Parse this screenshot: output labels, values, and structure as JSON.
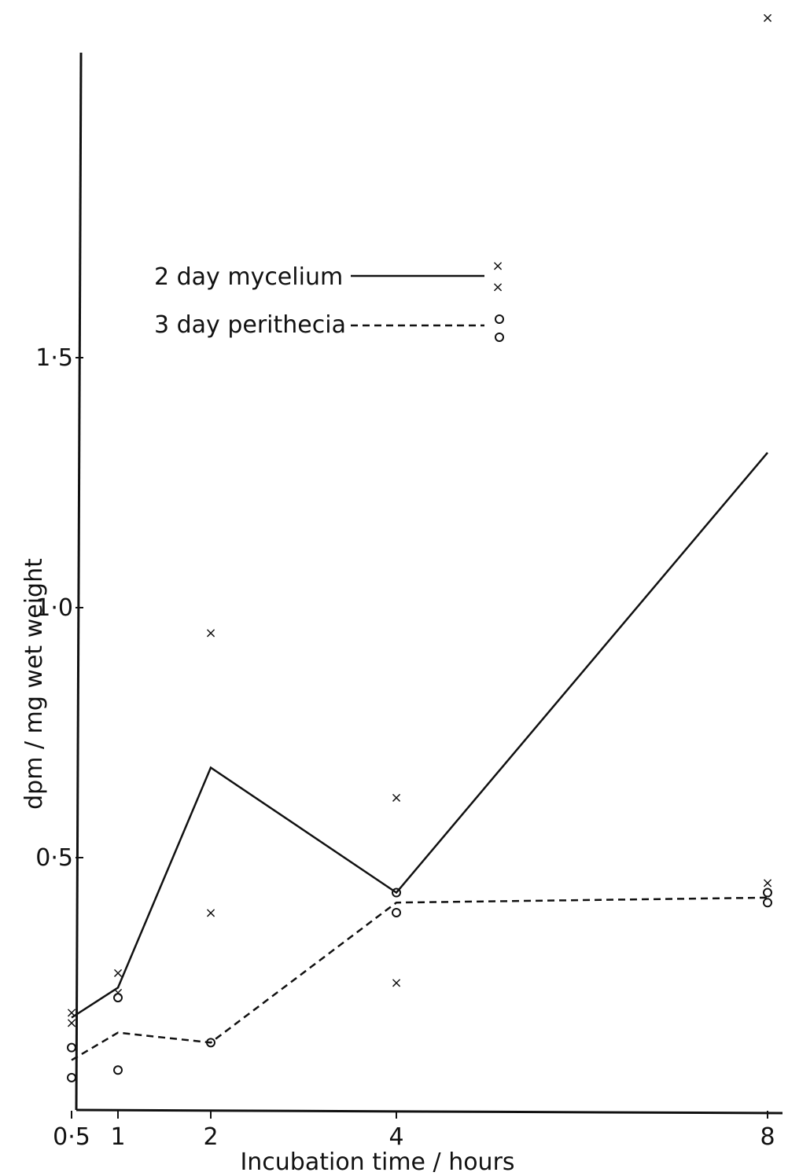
{
  "chart_data": {
    "type": "line",
    "xlabel": "Incubation time / hours",
    "ylabel": "dpm / mg wet weight",
    "x_ticks": [
      {
        "value": 0.5,
        "label": "0·5"
      },
      {
        "value": 1,
        "label": "1"
      },
      {
        "value": 2,
        "label": "2"
      },
      {
        "value": 4,
        "label": "4"
      },
      {
        "value": 8,
        "label": "8"
      }
    ],
    "y_ticks": [
      {
        "value": 0.5,
        "label": "0·5"
      },
      {
        "value": 1.0,
        "label": "1·0"
      },
      {
        "value": 1.5,
        "label": "1·5"
      }
    ],
    "xlim": [
      0,
      8.2
    ],
    "ylim": [
      0,
      2.1
    ],
    "grid": false,
    "legend_position": "top-center",
    "series": [
      {
        "name": "2 day mycelium",
        "line_style": "solid",
        "marker": "x",
        "mean": {
          "x": [
            0.5,
            1,
            2,
            4,
            8
          ],
          "y": [
            0.18,
            0.24,
            0.68,
            0.43,
            1.31
          ]
        },
        "points": {
          "x": [
            0.5,
            0.5,
            1,
            1,
            2,
            2,
            4,
            4,
            8,
            8
          ],
          "y": [
            0.19,
            0.17,
            0.27,
            0.23,
            0.95,
            0.39,
            0.62,
            0.25,
            2.18,
            0.45
          ]
        }
      },
      {
        "name": "3 day perithecia",
        "line_style": "dashed",
        "marker": "o",
        "mean": {
          "x": [
            0.5,
            1,
            2,
            4,
            8
          ],
          "y": [
            0.095,
            0.15,
            0.13,
            0.41,
            0.42
          ]
        },
        "points": {
          "x": [
            0.5,
            0.5,
            1,
            1,
            2,
            4,
            4,
            8,
            8
          ],
          "y": [
            0.12,
            0.06,
            0.22,
            0.075,
            0.13,
            0.43,
            0.39,
            0.43,
            0.41
          ]
        }
      }
    ]
  }
}
